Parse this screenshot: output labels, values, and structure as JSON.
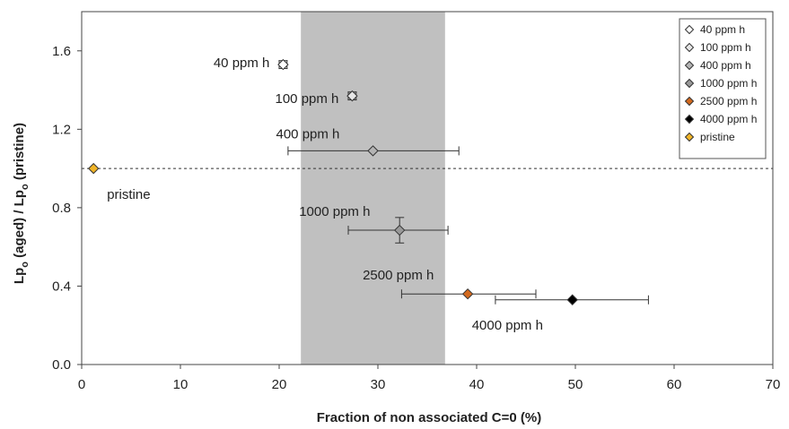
{
  "chart_data": {
    "type": "scatter",
    "xlabel": "Fraction of non associated C=0 (%)",
    "ylabel_parts": {
      "lp": "Lp",
      "sub": "o",
      "aged": " (aged) / ",
      "pristine": " (pristine)"
    },
    "xlim": [
      0,
      70
    ],
    "ylim": [
      0,
      1.8
    ],
    "xticks": [
      0,
      10,
      20,
      30,
      40,
      50,
      60,
      70
    ],
    "xtick_labels": [
      "0",
      "10",
      "20",
      "30",
      "40",
      "50",
      "60",
      "70"
    ],
    "yticks": [
      0,
      0.4,
      0.8,
      1.2,
      1.6
    ],
    "ytick_labels": [
      "0.0",
      "0.4",
      "0.8",
      "1.2",
      "1.6"
    ],
    "grid": false,
    "legend_position": "top-right",
    "shaded_region": {
      "x_from": 22.2,
      "x_to": 36.8,
      "color": "#c0c0c0"
    },
    "reference_line": {
      "y": 1.0,
      "style": "dashed"
    },
    "series": [
      {
        "name": "40 ppm h",
        "color": "#ffffff",
        "x": 20.4,
        "y": 1.53,
        "xerr": [
          20.0,
          20.8
        ],
        "yerr": [
          1.51,
          1.55
        ],
        "annotation": "40 ppm h",
        "annotation_anchor": "end"
      },
      {
        "name": "100 ppm h",
        "color": "#e6e6e6",
        "x": 27.4,
        "y": 1.37,
        "xerr": [
          27.0,
          27.8
        ],
        "yerr": [
          1.35,
          1.39
        ],
        "annotation": "100 ppm h",
        "annotation_anchor": "end"
      },
      {
        "name": "400 ppm h",
        "color": "#b4b4b4",
        "x": 29.5,
        "y": 1.09,
        "xerr": [
          20.9,
          38.2
        ],
        "yerr": null,
        "annotation": "400 ppm h",
        "annotation_anchor": "start"
      },
      {
        "name": "1000 ppm h",
        "color": "#999999",
        "x": 32.2,
        "y": 0.685,
        "xerr": [
          27.0,
          37.1
        ],
        "yerr": [
          0.62,
          0.75
        ],
        "annotation": "1000 ppm h",
        "annotation_anchor": "start"
      },
      {
        "name": "2500 ppm h",
        "color": "#d2691e",
        "x": 39.1,
        "y": 0.36,
        "xerr": [
          32.4,
          46.0
        ],
        "yerr": null,
        "annotation": "2500 ppm h",
        "annotation_anchor": "start"
      },
      {
        "name": "4000 ppm h",
        "color": "#000000",
        "x": 49.7,
        "y": 0.33,
        "xerr": [
          41.9,
          57.4
        ],
        "yerr": null,
        "annotation": "4000 ppm h",
        "annotation_anchor": "start"
      },
      {
        "name": "pristine",
        "color": "#f0b428",
        "x": 1.2,
        "y": 1.0,
        "xerr": null,
        "yerr": null,
        "annotation": "pristine",
        "annotation_anchor": "start"
      }
    ]
  }
}
